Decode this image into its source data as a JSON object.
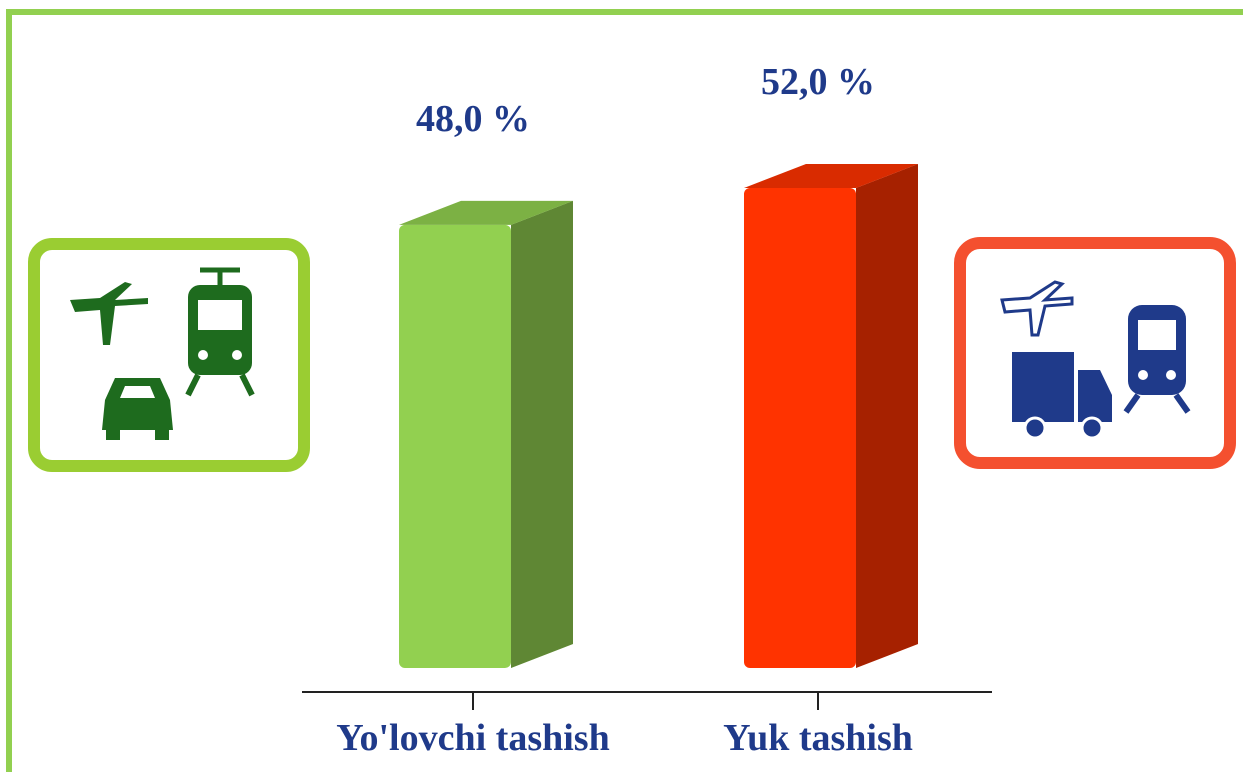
{
  "chart_data": {
    "type": "bar3d",
    "categories": [
      "Yo'lovchi tashish",
      "Yuk tashish"
    ],
    "values": [
      48.0,
      52.0
    ],
    "value_labels": [
      "48,0 %",
      "52,0 %"
    ],
    "colors": [
      "#92d050",
      "#ff3300"
    ]
  }
}
